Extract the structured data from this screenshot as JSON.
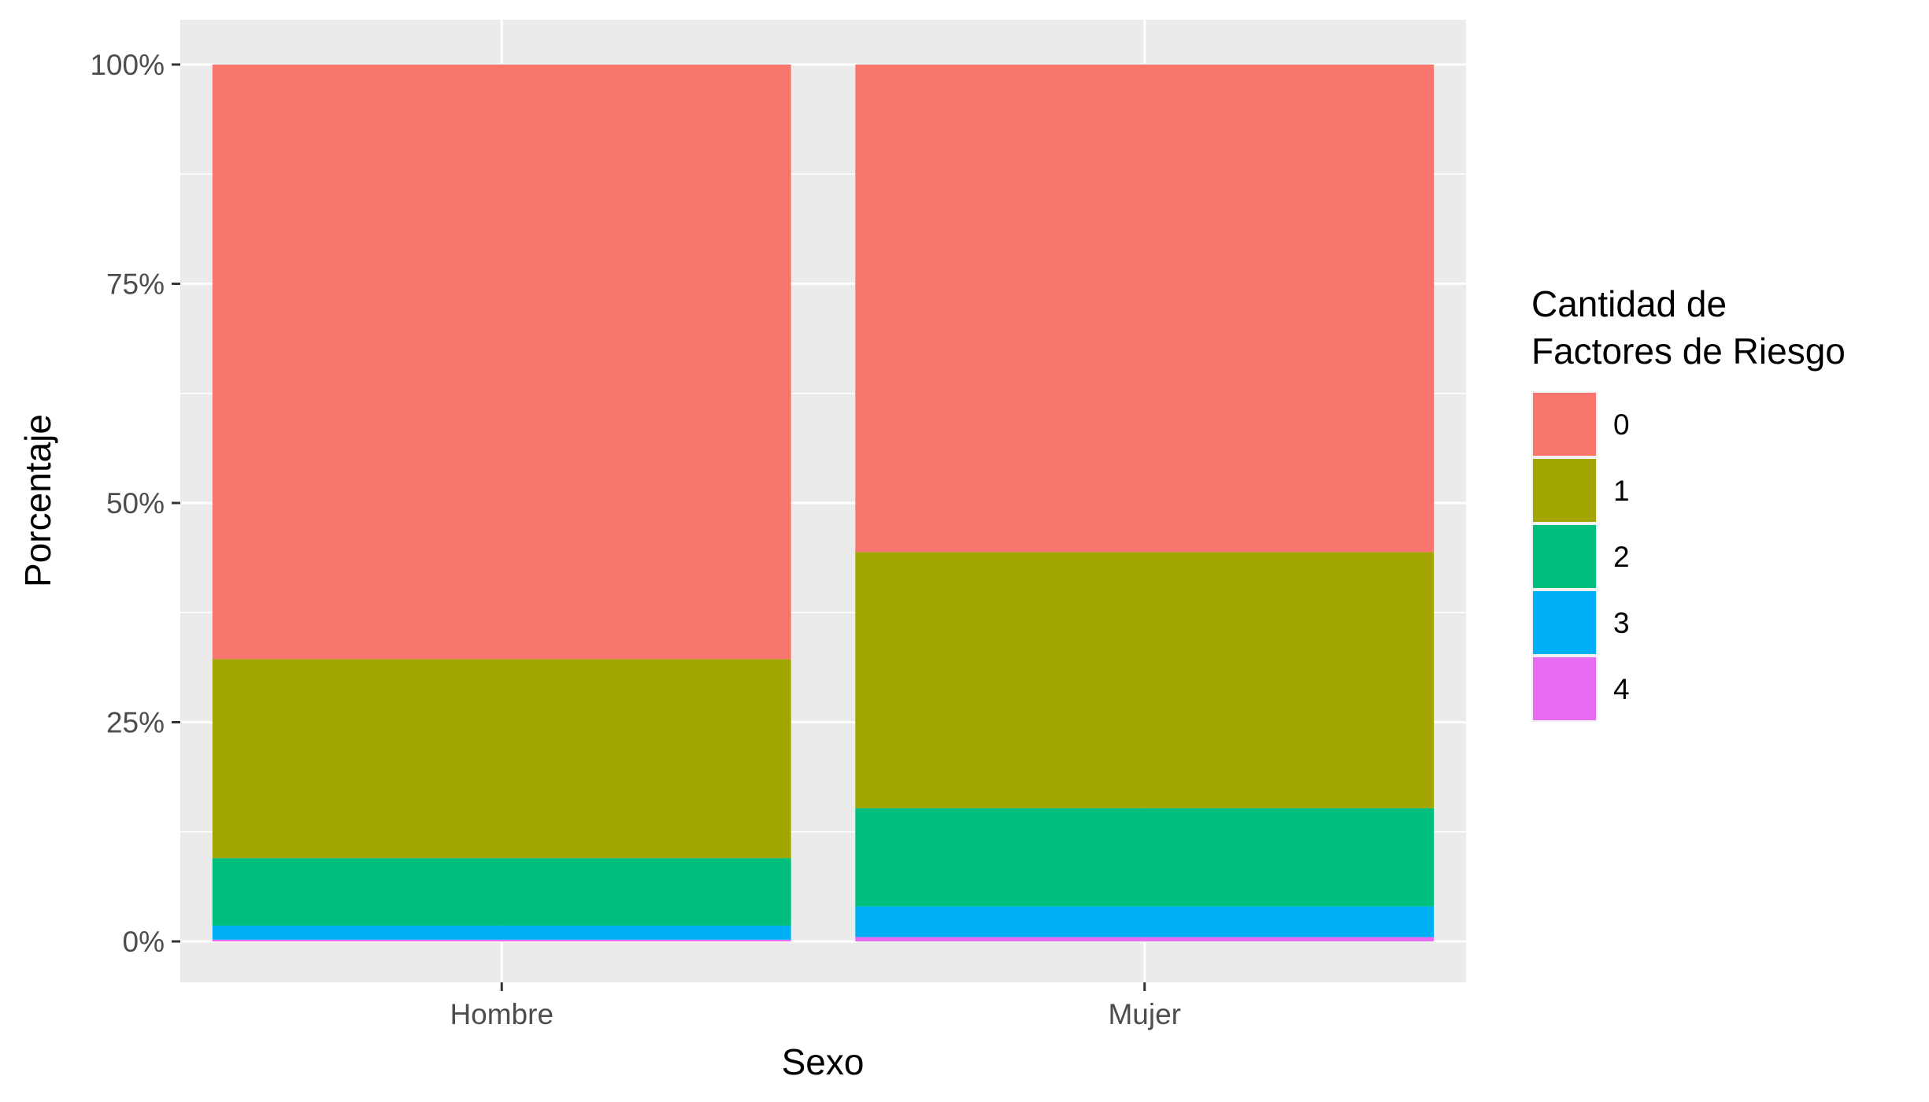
{
  "chart_data": {
    "type": "bar",
    "stacked": true,
    "percent": true,
    "xlabel": "Sexo",
    "ylabel": "Porcentaje",
    "categories": [
      "Hombre",
      "Mujer"
    ],
    "ylim": [
      0,
      1
    ],
    "yticks": [
      {
        "value": 0,
        "label": "0%"
      },
      {
        "value": 0.25,
        "label": "25%"
      },
      {
        "value": 0.5,
        "label": "50%"
      },
      {
        "value": 0.75,
        "label": "75%"
      },
      {
        "value": 1,
        "label": "100%"
      }
    ],
    "grid": true,
    "legend": {
      "position": "right",
      "title_lines": [
        "Cantidad de",
        "Factores de Riesgo"
      ]
    },
    "series": [
      {
        "name": "0",
        "color": "#F8766D",
        "values": [
          0.678,
          0.556
        ]
      },
      {
        "name": "1",
        "color": "#A3A500",
        "values": [
          0.227,
          0.292
        ]
      },
      {
        "name": "2",
        "color": "#00BF7D",
        "values": [
          0.077,
          0.112
        ]
      },
      {
        "name": "3",
        "color": "#00B0F6",
        "values": [
          0.016,
          0.035
        ]
      },
      {
        "name": "4",
        "color": "#E76BF3",
        "values": [
          0.002,
          0.005
        ]
      }
    ]
  }
}
